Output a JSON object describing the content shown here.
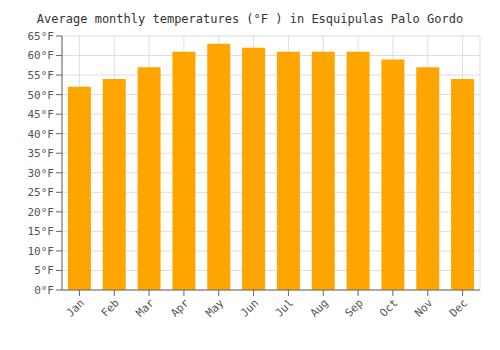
{
  "chart_data": {
    "type": "bar",
    "title": "Average monthly temperatures (°F ) in Esquipulas Palo Gordo",
    "categories": [
      "Jan",
      "Feb",
      "Mar",
      "Apr",
      "May",
      "Jun",
      "Jul",
      "Aug",
      "Sep",
      "Oct",
      "Nov",
      "Dec"
    ],
    "values": [
      52,
      54,
      57,
      61,
      63,
      62,
      61,
      61,
      61,
      59,
      57,
      54
    ],
    "color": "#FFA500",
    "ylim": [
      0,
      65
    ],
    "yticks": [
      {
        "value": 0,
        "label": "0°F"
      },
      {
        "value": 5,
        "label": "5°F"
      },
      {
        "value": 10,
        "label": "10°F"
      },
      {
        "value": 15,
        "label": "15°F"
      },
      {
        "value": 20,
        "label": "20°F"
      },
      {
        "value": 25,
        "label": "25°F"
      },
      {
        "value": 30,
        "label": "30°F"
      },
      {
        "value": 35,
        "label": "35°F"
      },
      {
        "value": 40,
        "label": "40°F"
      },
      {
        "value": 45,
        "label": "45°F"
      },
      {
        "value": 50,
        "label": "50°F"
      },
      {
        "value": 55,
        "label": "55°F"
      },
      {
        "value": 60,
        "label": "60°F"
      },
      {
        "value": 65,
        "label": "65°F"
      }
    ],
    "grid": true
  }
}
